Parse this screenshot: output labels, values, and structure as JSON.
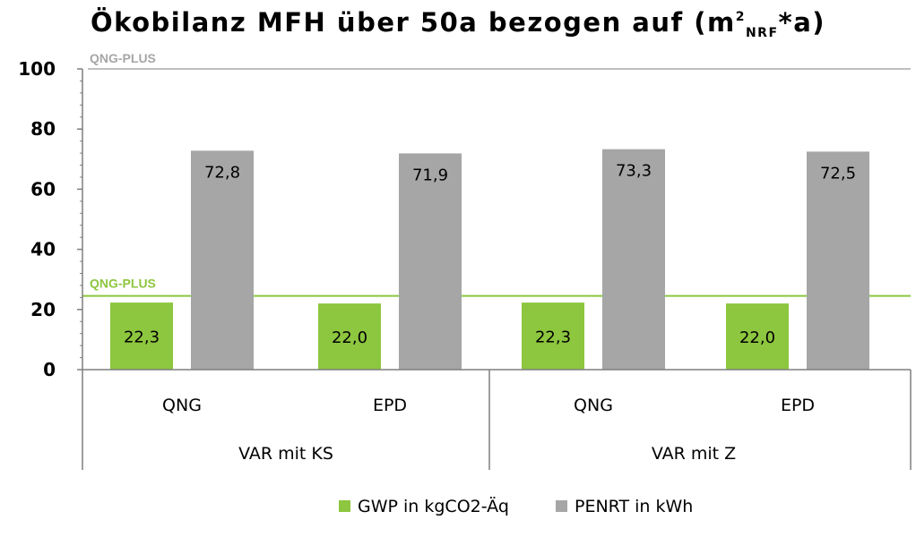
{
  "chart_data": {
    "type": "bar",
    "title": "Ökobilanz MFH über 50a bezogen auf (m",
    "title_sup": "2",
    "title_sub": "NRF",
    "title_end": "*a)",
    "groups": [
      {
        "label": "VAR mit KS",
        "categories": [
          "QNG",
          "EPD"
        ]
      },
      {
        "label": "VAR mit Z",
        "categories": [
          "QNG",
          "EPD"
        ]
      }
    ],
    "series": [
      {
        "name": "GWP in kgCO2-Äq",
        "color": "#8DC63F",
        "values": [
          22.3,
          22.0,
          22.3,
          22.0
        ],
        "labels": [
          "22,3",
          "22,0",
          "22,3",
          "22,0"
        ]
      },
      {
        "name": "PENRT in kWh",
        "color": "#A6A6A6",
        "values": [
          72.8,
          71.9,
          73.3,
          72.5
        ],
        "labels": [
          "72,8",
          "71,9",
          "73,3",
          "72,5"
        ]
      }
    ],
    "ylim": [
      0,
      100
    ],
    "yticks": [
      0,
      20,
      40,
      60,
      80,
      100
    ],
    "reference_lines": [
      {
        "label": "QNG-PLUS",
        "value": 100,
        "color": "#BFBFBF",
        "text_color": "#A6A6A6"
      },
      {
        "label": "QNG-PLUS",
        "value": 24.5,
        "color": "#8DC63F",
        "text_color": "#8DC63F"
      }
    ],
    "legend_position": "bottom"
  }
}
